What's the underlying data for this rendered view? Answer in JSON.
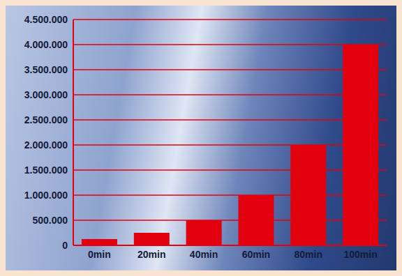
{
  "chart_data": {
    "type": "bar",
    "categories": [
      "0min",
      "20min",
      "40min",
      "60min",
      "80min",
      "100min"
    ],
    "values": [
      125000,
      250000,
      500000,
      1000000,
      2000000,
      4000000
    ],
    "color": "#e2000f",
    "ylim": [
      0,
      4500000
    ],
    "yticks": [
      0,
      {
        "value": 500000,
        "label": "500.000"
      },
      {
        "value": 1000000,
        "label": "1.000.000"
      },
      {
        "value": 1500000,
        "label": "1.500.000"
      },
      {
        "value": 2000000,
        "label": "2.000.000"
      },
      {
        "value": 2500000,
        "label": "2.500.000"
      },
      {
        "value": 3000000,
        "label": "3.000.000"
      },
      {
        "value": 3500000,
        "label": "3.500.000"
      },
      {
        "value": 4000000,
        "label": "4.000.000"
      },
      {
        "value": 4500000,
        "label": "4.500.000"
      }
    ],
    "grid": true
  }
}
